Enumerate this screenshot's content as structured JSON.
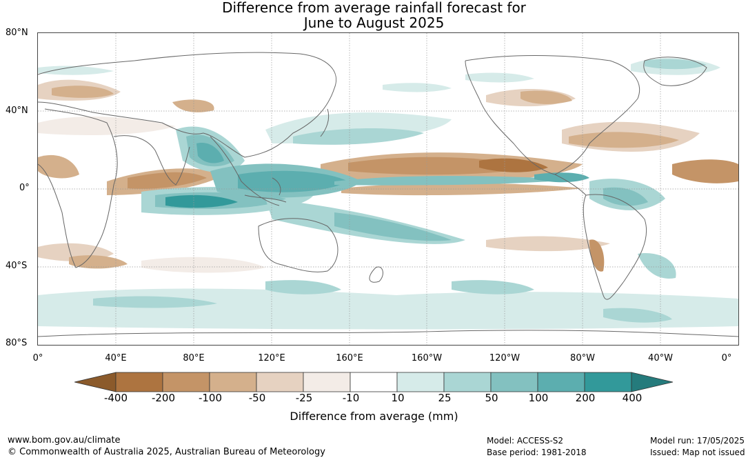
{
  "title_line1": "Difference from average rainfall forecast for",
  "title_line2": "June to August 2025",
  "lat_labels": [
    "80°N",
    "40°N",
    "0°",
    "40°S",
    "80°S"
  ],
  "lon_labels": [
    "0°",
    "40°E",
    "80°E",
    "120°E",
    "160°E",
    "160°W",
    "120°W",
    "80°W",
    "40°W",
    "0°"
  ],
  "colorbar": {
    "ticks": [
      "-400",
      "-200",
      "-100",
      "-50",
      "-25",
      "-10",
      "10",
      "25",
      "50",
      "100",
      "200",
      "400"
    ],
    "colors": [
      "#8b5a2b",
      "#ad7440",
      "#c49467",
      "#d4b08c",
      "#e6d2c1",
      "#f3ece7",
      "#ffffff",
      "#d6ebe9",
      "#aad6d4",
      "#83c1c0",
      "#5caeaf",
      "#32999a",
      "#257b7c"
    ],
    "label": "Difference from average (mm)"
  },
  "footer": {
    "site": "www.bom.gov.au/climate",
    "copyright": "© Commonwealth of Australia 2025, Australian Bureau of Meteorology",
    "model": "Model: ACCESS-S2",
    "base_period": "Base period: 1981-2018",
    "model_run": "Model run: 17/05/2025",
    "issued": "Issued: Map not issued"
  }
}
